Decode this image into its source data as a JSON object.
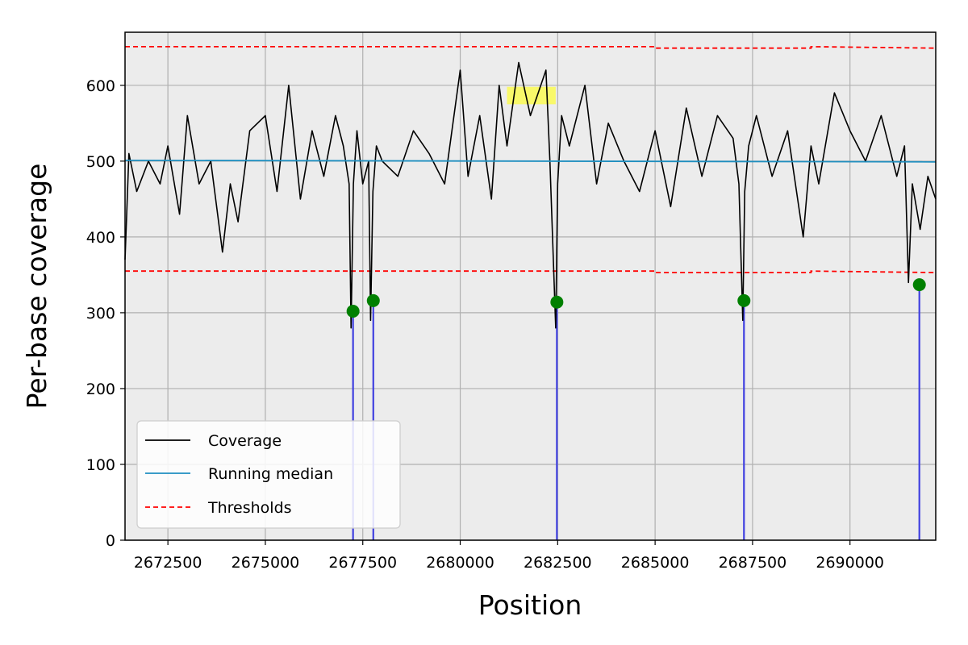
{
  "chart_data": {
    "type": "line",
    "title": "",
    "xlabel": "Position",
    "ylabel": "Per-base coverage",
    "xlim": [
      2671400,
      2692200
    ],
    "ylim": [
      0,
      670
    ],
    "x_ticks": [
      2672500,
      2675000,
      2677500,
      2680000,
      2682500,
      2685000,
      2687500,
      2690000
    ],
    "x_tick_labels": [
      "2672500",
      "2675000",
      "2677500",
      "2680000",
      "2682500",
      "2685000",
      "2687500",
      "2690000"
    ],
    "y_ticks": [
      0,
      100,
      200,
      300,
      400,
      500,
      600
    ],
    "y_tick_labels": [
      "0",
      "100",
      "200",
      "300",
      "400",
      "500",
      "600"
    ],
    "grid": true,
    "legend_position": "lower-left",
    "series": [
      {
        "name": "Coverage",
        "kind": "line",
        "color": "#000000",
        "x": [
          2671400,
          2671500,
          2671700,
          2672000,
          2672300,
          2672500,
          2672800,
          2673000,
          2673300,
          2673600,
          2673900,
          2674100,
          2674300,
          2674600,
          2675000,
          2675300,
          2675600,
          2675900,
          2676200,
          2676500,
          2676800,
          2677000,
          2677150,
          2677200,
          2677260,
          2677350,
          2677500,
          2677650,
          2677700,
          2677760,
          2677850,
          2678000,
          2678400,
          2678800,
          2679200,
          2679600,
          2680000,
          2680200,
          2680500,
          2680800,
          2681000,
          2681200,
          2681500,
          2681800,
          2682000,
          2682200,
          2682300,
          2682450,
          2682500,
          2682600,
          2682800,
          2683200,
          2683500,
          2683800,
          2684200,
          2684600,
          2685000,
          2685400,
          2685800,
          2686200,
          2686600,
          2687000,
          2687150,
          2687250,
          2687300,
          2687400,
          2687600,
          2688000,
          2688400,
          2688800,
          2689000,
          2689200,
          2689600,
          2690000,
          2690400,
          2690800,
          2691200,
          2691400,
          2691500,
          2691600,
          2691800,
          2692000,
          2692200
        ],
        "y": [
          370,
          510,
          460,
          500,
          470,
          520,
          430,
          560,
          470,
          500,
          380,
          470,
          420,
          540,
          560,
          460,
          600,
          450,
          540,
          480,
          560,
          520,
          470,
          280,
          470,
          540,
          470,
          500,
          290,
          460,
          520,
          500,
          480,
          540,
          510,
          470,
          620,
          480,
          560,
          450,
          600,
          520,
          630,
          560,
          590,
          620,
          500,
          280,
          470,
          560,
          520,
          600,
          470,
          550,
          500,
          460,
          540,
          440,
          570,
          480,
          560,
          530,
          470,
          290,
          460,
          520,
          560,
          480,
          540,
          400,
          520,
          470,
          590,
          540,
          500,
          560,
          480,
          520,
          340,
          470,
          410,
          480,
          450
        ]
      },
      {
        "name": "Running median",
        "kind": "line",
        "color": "#1f8fc0",
        "x": [
          2671400,
          2692200
        ],
        "y": [
          501,
          499
        ]
      },
      {
        "name": "Thresholds",
        "kind": "dashed",
        "color": "#ff0000",
        "upper": {
          "x": [
            2671400,
            2685000,
            2685000,
            2689000,
            2689000,
            2692200
          ],
          "y": [
            651,
            651,
            649,
            649,
            651,
            649
          ]
        },
        "lower": {
          "x": [
            2671400,
            2685000,
            2685000,
            2689000,
            2689000,
            2692200
          ],
          "y": [
            355,
            355,
            353,
            353,
            355,
            353
          ]
        }
      }
    ],
    "marked_positions": {
      "line_color": "#4040e0",
      "point_color": "#008000",
      "x": [
        2677250,
        2677770,
        2682480,
        2687280,
        2691780
      ],
      "y": [
        302,
        316,
        314,
        316,
        337
      ]
    },
    "highlight": {
      "color": "#ffff33",
      "x_range": [
        2681200,
        2682450
      ],
      "y_range": [
        575,
        598
      ]
    }
  }
}
